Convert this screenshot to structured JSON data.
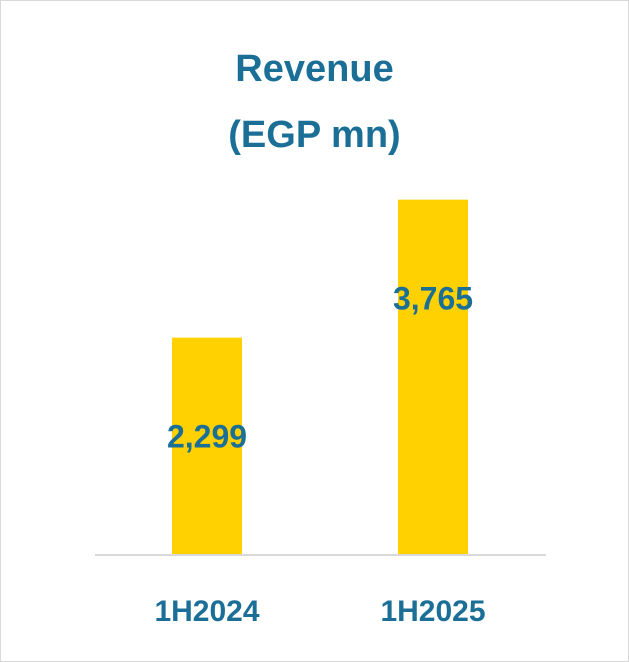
{
  "chart_data": {
    "type": "bar",
    "title": "Revenue",
    "subtitle": "(EGP mn)",
    "categories": [
      "1H2024",
      "1H2025"
    ],
    "values": [
      2299,
      3765
    ],
    "value_labels": [
      "2,299",
      "3,765"
    ],
    "ylim": [
      0,
      4250
    ],
    "grid": false,
    "legend": "none",
    "colors": {
      "bar": "#ffd100",
      "text": "#1b6f97",
      "axis": "#d9d9d9"
    }
  }
}
